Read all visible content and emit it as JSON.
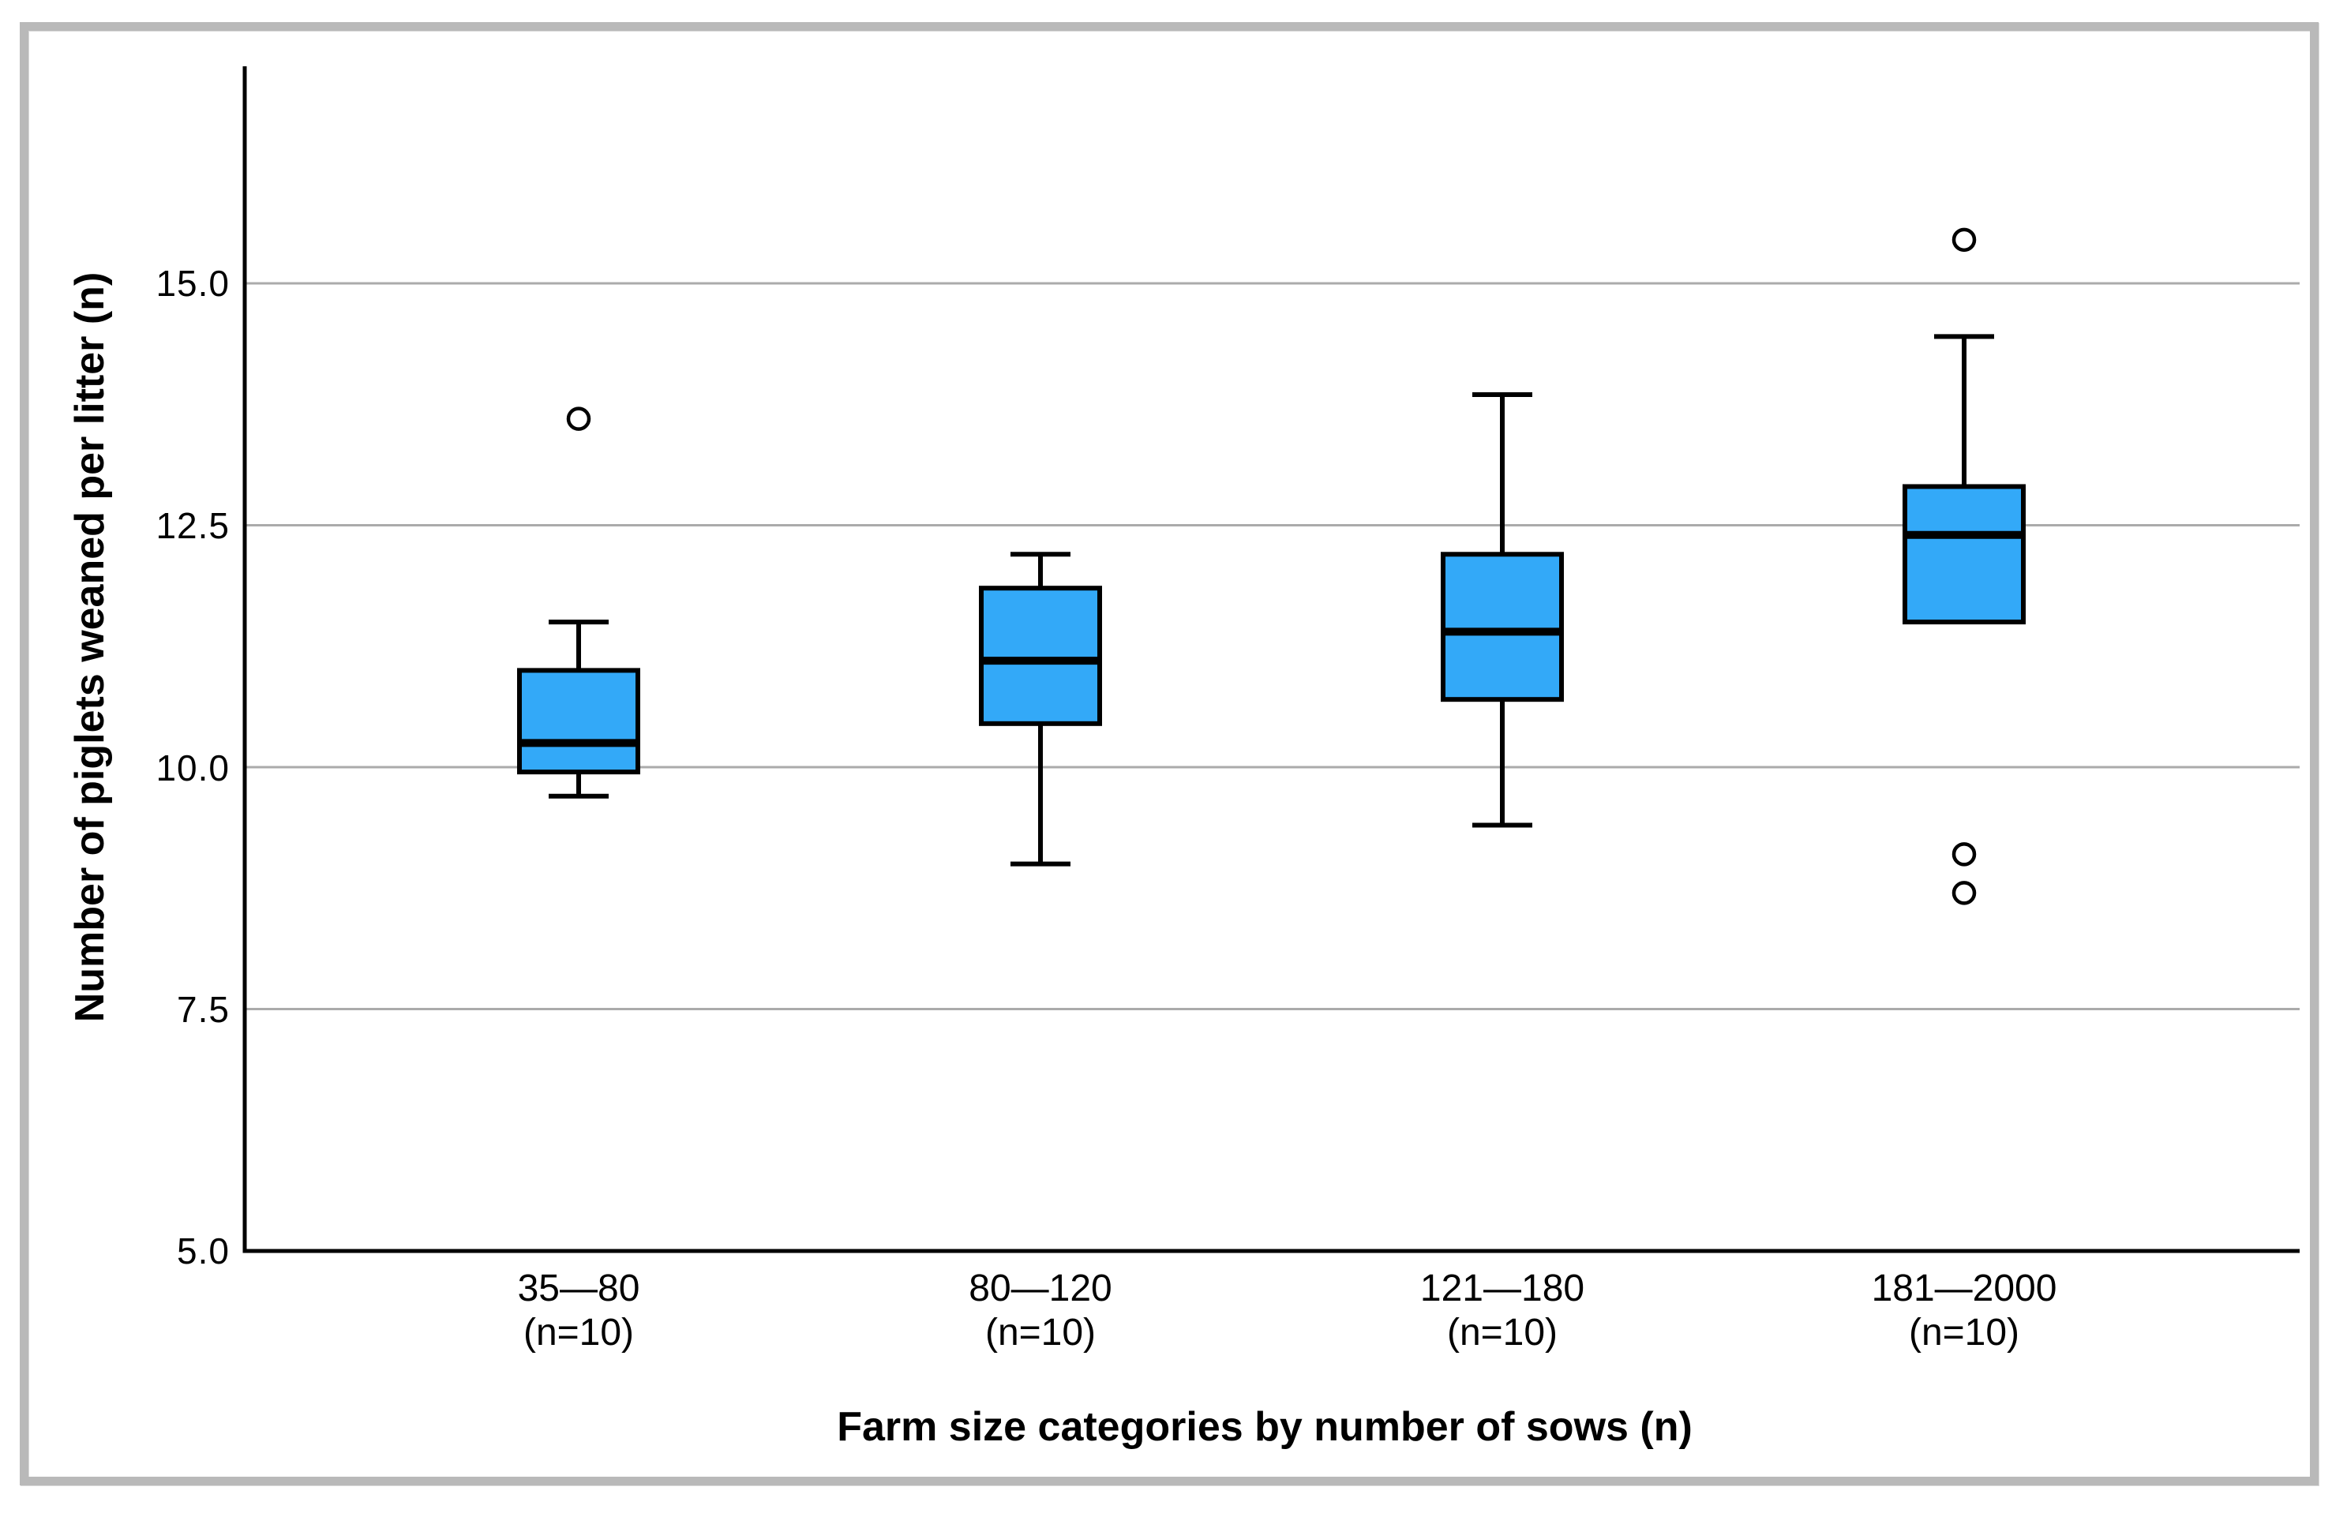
{
  "chart_data": {
    "type": "boxplot",
    "title": "",
    "xlabel": "Farm size categories by number of sows (n)",
    "ylabel": "Number of piglets weaned per litter (n)",
    "ylim": [
      5.0,
      17.2
    ],
    "yticks": [
      5.0,
      7.5,
      10.0,
      12.5,
      15.0
    ],
    "ytick_labels": [
      "15.0",
      "12.5",
      "10.0",
      "7.5",
      "5.0"
    ],
    "grid": "horizontal-gridlines",
    "legend": "none",
    "box_fill_color": "#33A9F8",
    "box_stroke_color": "#000000",
    "gridline_color": "#ABABAB",
    "groups": [
      {
        "label": "35—80",
        "sublabel": "(n=10)",
        "n": 10,
        "whisker_low": 9.7,
        "q1": 9.95,
        "median": 10.25,
        "q3": 11.0,
        "whisker_high": 11.5,
        "outliers": [
          13.6
        ]
      },
      {
        "label": "80—120",
        "sublabel": "(n=10)",
        "n": 10,
        "whisker_low": 9.0,
        "q1": 10.45,
        "median": 11.1,
        "q3": 11.85,
        "whisker_high": 12.2,
        "outliers": []
      },
      {
        "label": "121—180",
        "sublabel": "(n=10)",
        "n": 10,
        "whisker_low": 9.4,
        "q1": 10.7,
        "median": 11.4,
        "q3": 12.2,
        "whisker_high": 13.85,
        "outliers": []
      },
      {
        "label": "181—2000",
        "sublabel": "(n=10)",
        "n": 10,
        "whisker_low": null,
        "q1": 11.5,
        "median": 12.4,
        "q3": 12.9,
        "whisker_high": 14.45,
        "outliers": [
          15.45,
          9.1,
          8.7
        ]
      }
    ]
  }
}
